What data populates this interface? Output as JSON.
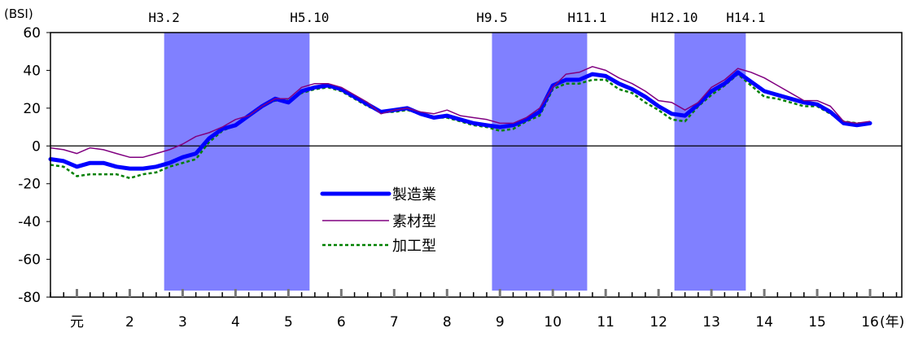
{
  "chart_data": {
    "type": "line",
    "y_unit": "(BSI)",
    "x_unit": "(年)",
    "ylim": [
      -80,
      60
    ],
    "yticks": [
      60,
      40,
      20,
      0,
      -20,
      -40,
      -60,
      -80
    ],
    "xlim": [
      0.5,
      16.6
    ],
    "x_categories": [
      {
        "label": "元",
        "x": 1
      },
      {
        "label": "2",
        "x": 2
      },
      {
        "label": "3",
        "x": 3
      },
      {
        "label": "4",
        "x": 4
      },
      {
        "label": "5",
        "x": 5
      },
      {
        "label": "6",
        "x": 6
      },
      {
        "label": "7",
        "x": 7
      },
      {
        "label": "8",
        "x": 8
      },
      {
        "label": "9",
        "x": 9
      },
      {
        "label": "10",
        "x": 10
      },
      {
        "label": "11",
        "x": 11
      },
      {
        "label": "12",
        "x": 12
      },
      {
        "label": "13",
        "x": 13
      },
      {
        "label": "14",
        "x": 14
      },
      {
        "label": "15",
        "x": 15
      },
      {
        "label": "16",
        "x": 16
      }
    ],
    "recession_bands": [
      {
        "start": 2.65,
        "end": 5.4,
        "start_label": "H3.2",
        "end_label": "H5.10"
      },
      {
        "start": 8.85,
        "end": 10.65,
        "start_label": "H9.5",
        "end_label": "H11.1"
      },
      {
        "start": 12.3,
        "end": 13.65,
        "start_label": "H12.10",
        "end_label": "H14.1"
      }
    ],
    "band_color": "#8080ff",
    "series": [
      {
        "name": "製造業",
        "color": "#0000ff",
        "style": "thick",
        "points": [
          [
            0.5,
            -7
          ],
          [
            0.75,
            -8
          ],
          [
            1.0,
            -11
          ],
          [
            1.25,
            -9
          ],
          [
            1.5,
            -9
          ],
          [
            1.75,
            -11
          ],
          [
            2.0,
            -12
          ],
          [
            2.25,
            -12
          ],
          [
            2.5,
            -11
          ],
          [
            2.75,
            -9
          ],
          [
            3.0,
            -6
          ],
          [
            3.25,
            -4
          ],
          [
            3.5,
            4
          ],
          [
            3.75,
            9
          ],
          [
            4.0,
            11
          ],
          [
            4.25,
            16
          ],
          [
            4.5,
            21
          ],
          [
            4.75,
            25
          ],
          [
            5.0,
            23
          ],
          [
            5.25,
            29
          ],
          [
            5.5,
            31
          ],
          [
            5.75,
            32
          ],
          [
            6.0,
            30
          ],
          [
            6.25,
            26
          ],
          [
            6.5,
            22
          ],
          [
            6.75,
            18
          ],
          [
            7.0,
            19
          ],
          [
            7.25,
            20
          ],
          [
            7.5,
            17
          ],
          [
            7.75,
            15
          ],
          [
            8.0,
            16
          ],
          [
            8.25,
            14
          ],
          [
            8.5,
            12
          ],
          [
            8.75,
            11
          ],
          [
            9.0,
            10
          ],
          [
            9.25,
            11
          ],
          [
            9.5,
            14
          ],
          [
            9.75,
            18
          ],
          [
            10.0,
            32
          ],
          [
            10.25,
            35
          ],
          [
            10.5,
            35
          ],
          [
            10.75,
            38
          ],
          [
            11.0,
            37
          ],
          [
            11.25,
            33
          ],
          [
            11.5,
            30
          ],
          [
            11.75,
            26
          ],
          [
            12.0,
            21
          ],
          [
            12.25,
            17
          ],
          [
            12.5,
            16
          ],
          [
            12.75,
            22
          ],
          [
            13.0,
            29
          ],
          [
            13.25,
            33
          ],
          [
            13.5,
            39
          ],
          [
            13.75,
            34
          ],
          [
            14.0,
            29
          ],
          [
            14.25,
            27
          ],
          [
            14.5,
            25
          ],
          [
            14.75,
            23
          ],
          [
            15.0,
            22
          ],
          [
            15.25,
            18
          ],
          [
            15.5,
            12
          ],
          [
            15.75,
            11
          ],
          [
            16.0,
            12
          ]
        ]
      },
      {
        "name": "素材型",
        "color": "#800080",
        "style": "thin",
        "points": [
          [
            0.5,
            -1
          ],
          [
            0.75,
            -2
          ],
          [
            1.0,
            -4
          ],
          [
            1.25,
            -1
          ],
          [
            1.5,
            -2
          ],
          [
            1.75,
            -4
          ],
          [
            2.0,
            -6
          ],
          [
            2.25,
            -6
          ],
          [
            2.5,
            -4
          ],
          [
            2.75,
            -2
          ],
          [
            3.0,
            1
          ],
          [
            3.25,
            5
          ],
          [
            3.5,
            7
          ],
          [
            3.75,
            10
          ],
          [
            4.0,
            14
          ],
          [
            4.25,
            16
          ],
          [
            4.5,
            21
          ],
          [
            4.75,
            25
          ],
          [
            5.0,
            25
          ],
          [
            5.25,
            31
          ],
          [
            5.5,
            33
          ],
          [
            5.75,
            33
          ],
          [
            6.0,
            31
          ],
          [
            6.25,
            27
          ],
          [
            6.5,
            23
          ],
          [
            6.75,
            17
          ],
          [
            7.0,
            19
          ],
          [
            7.25,
            20
          ],
          [
            7.5,
            18
          ],
          [
            7.75,
            17
          ],
          [
            8.0,
            19
          ],
          [
            8.25,
            16
          ],
          [
            8.5,
            15
          ],
          [
            8.75,
            14
          ],
          [
            9.0,
            12
          ],
          [
            9.25,
            12
          ],
          [
            9.5,
            15
          ],
          [
            9.75,
            20
          ],
          [
            10.0,
            31
          ],
          [
            10.25,
            38
          ],
          [
            10.5,
            39
          ],
          [
            10.75,
            42
          ],
          [
            11.0,
            40
          ],
          [
            11.25,
            36
          ],
          [
            11.5,
            33
          ],
          [
            11.75,
            29
          ],
          [
            12.0,
            24
          ],
          [
            12.25,
            23
          ],
          [
            12.5,
            19
          ],
          [
            12.75,
            23
          ],
          [
            13.0,
            31
          ],
          [
            13.25,
            35
          ],
          [
            13.5,
            41
          ],
          [
            13.75,
            39
          ],
          [
            14.0,
            36
          ],
          [
            14.25,
            32
          ],
          [
            14.5,
            28
          ],
          [
            14.75,
            24
          ],
          [
            15.0,
            24
          ],
          [
            15.25,
            21
          ],
          [
            15.5,
            13
          ],
          [
            15.75,
            12
          ],
          [
            16.0,
            13
          ]
        ]
      },
      {
        "name": "加工型",
        "color": "#008000",
        "style": "dashed",
        "points": [
          [
            0.5,
            -10
          ],
          [
            0.75,
            -11
          ],
          [
            1.0,
            -16
          ],
          [
            1.25,
            -15
          ],
          [
            1.5,
            -15
          ],
          [
            1.75,
            -15
          ],
          [
            2.0,
            -17
          ],
          [
            2.25,
            -15
          ],
          [
            2.5,
            -14
          ],
          [
            2.75,
            -11
          ],
          [
            3.0,
            -9
          ],
          [
            3.25,
            -7
          ],
          [
            3.5,
            2
          ],
          [
            3.75,
            8
          ],
          [
            4.0,
            11
          ],
          [
            4.25,
            16
          ],
          [
            4.5,
            21
          ],
          [
            4.75,
            24
          ],
          [
            5.0,
            24
          ],
          [
            5.25,
            28
          ],
          [
            5.5,
            30
          ],
          [
            5.75,
            31
          ],
          [
            6.0,
            29
          ],
          [
            6.25,
            25
          ],
          [
            6.5,
            21
          ],
          [
            6.75,
            18
          ],
          [
            7.0,
            18
          ],
          [
            7.25,
            19
          ],
          [
            7.5,
            17
          ],
          [
            7.75,
            15
          ],
          [
            8.0,
            15
          ],
          [
            8.25,
            13
          ],
          [
            8.5,
            11
          ],
          [
            8.75,
            10
          ],
          [
            9.0,
            8
          ],
          [
            9.25,
            9
          ],
          [
            9.5,
            13
          ],
          [
            9.75,
            16
          ],
          [
            10.0,
            30
          ],
          [
            10.25,
            33
          ],
          [
            10.5,
            33
          ],
          [
            10.75,
            35
          ],
          [
            11.0,
            35
          ],
          [
            11.25,
            30
          ],
          [
            11.5,
            28
          ],
          [
            11.75,
            23
          ],
          [
            12.0,
            19
          ],
          [
            12.25,
            14
          ],
          [
            12.5,
            13
          ],
          [
            12.75,
            21
          ],
          [
            13.0,
            27
          ],
          [
            13.25,
            32
          ],
          [
            13.5,
            38
          ],
          [
            13.75,
            32
          ],
          [
            14.0,
            26
          ],
          [
            14.25,
            25
          ],
          [
            14.5,
            23
          ],
          [
            14.75,
            21
          ],
          [
            15.0,
            21
          ],
          [
            15.25,
            17
          ],
          [
            15.5,
            13
          ],
          [
            15.75,
            12
          ],
          [
            16.0,
            12
          ]
        ]
      }
    ]
  }
}
